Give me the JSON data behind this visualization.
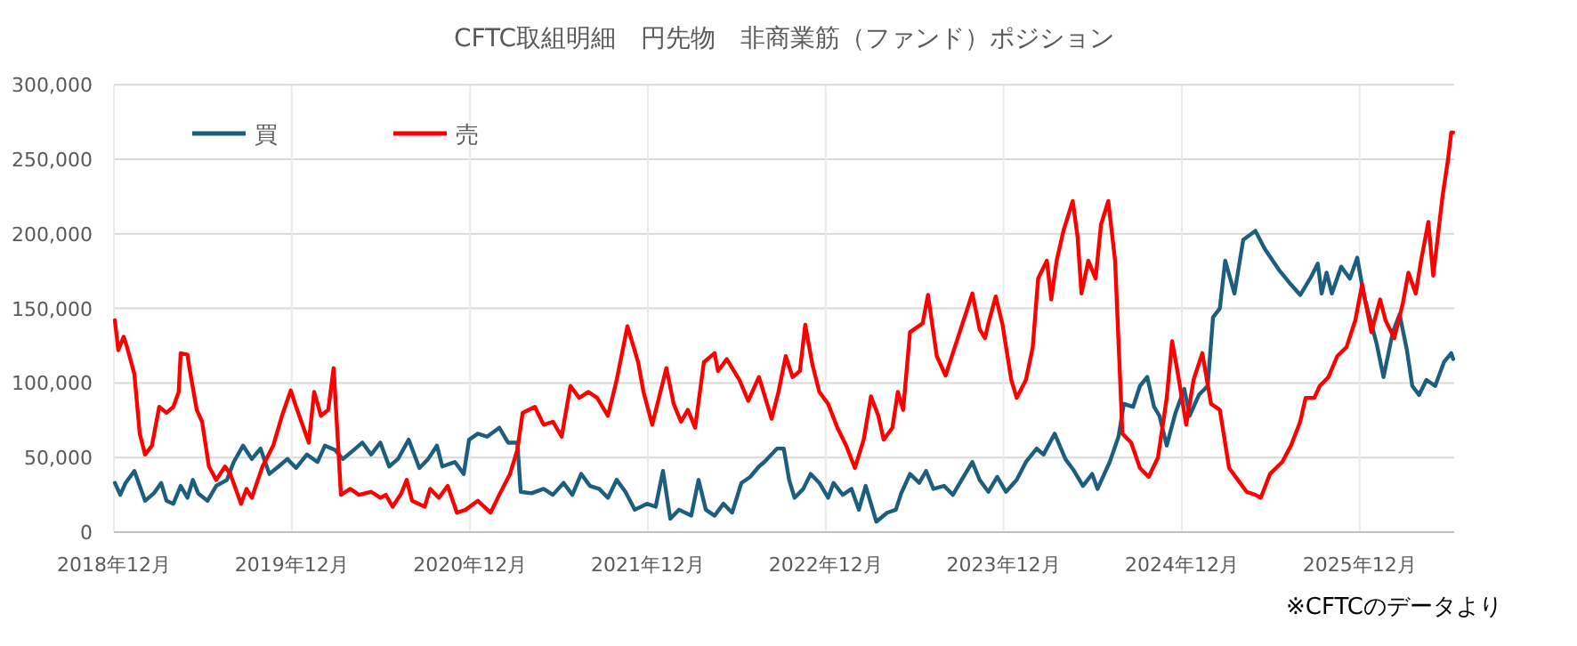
{
  "chart_data": {
    "type": "line",
    "title": "CFTC取組明細　円先物　非商業筋（ファンド）ポジション",
    "xlim": [
      "2018-12-01",
      "2026-06-13"
    ],
    "xticks": [
      {
        "value": "2018-12-01",
        "label": "2018年12月"
      },
      {
        "value": "2019-12-01",
        "label": "2019年12月"
      },
      {
        "value": "2020-12-01",
        "label": "2020年12月"
      },
      {
        "value": "2021-12-01",
        "label": "2021年12月"
      },
      {
        "value": "2022-12-01",
        "label": "2022年12月"
      },
      {
        "value": "2023-12-01",
        "label": "2023年12月"
      },
      {
        "value": "2024-12-01",
        "label": "2024年12月"
      },
      {
        "value": "2025-12-01",
        "label": "2025年12月"
      }
    ],
    "ylim": [
      0,
      300000
    ],
    "yticks": [
      {
        "value": 0,
        "label": "0"
      },
      {
        "value": 50000,
        "label": "50,000"
      },
      {
        "value": 100000,
        "label": "100,000"
      },
      {
        "value": 150000,
        "label": "150,000"
      },
      {
        "value": 200000,
        "label": "200,000"
      },
      {
        "value": 250000,
        "label": "250,000"
      },
      {
        "value": 300000,
        "label": "300,000"
      }
    ],
    "grid": true,
    "legend": "top left",
    "marker": "none",
    "line_style": "solid",
    "annotations": [
      "※CFTCのデータより"
    ],
    "series": [
      {
        "name": "買",
        "color": "#1b5e7e",
        "x": [
          "2018-12-03",
          "2018-12-14",
          "2018-12-25",
          "2019-01-12",
          "2019-01-23",
          "2019-02-03",
          "2019-02-21",
          "2019-03-08",
          "2019-03-19",
          "2019-04-02",
          "2019-04-17",
          "2019-05-01",
          "2019-05-12",
          "2019-05-23",
          "2019-06-11",
          "2019-06-29",
          "2019-07-21",
          "2019-08-04",
          "2019-08-23",
          "2019-09-10",
          "2019-09-28",
          "2019-10-16",
          "2019-11-04",
          "2019-11-22",
          "2019-12-10",
          "2020-01-01",
          "2020-01-23",
          "2020-02-07",
          "2020-02-28",
          "2020-03-15",
          "2020-04-06",
          "2020-04-24",
          "2020-05-12",
          "2020-05-31",
          "2020-06-18",
          "2020-07-06",
          "2020-07-28",
          "2020-08-19",
          "2020-09-06",
          "2020-09-24",
          "2020-10-05",
          "2020-10-31",
          "2020-11-18",
          "2020-11-29",
          "2020-12-17",
          "2021-01-05",
          "2021-01-30",
          "2021-02-17",
          "2021-03-08",
          "2021-03-15",
          "2021-04-06",
          "2021-05-01",
          "2021-05-20",
          "2021-06-11",
          "2021-06-29",
          "2021-07-17",
          "2021-08-04",
          "2021-08-23",
          "2021-09-10",
          "2021-09-28",
          "2021-10-16",
          "2021-11-04",
          "2021-11-29",
          "2021-12-17",
          "2022-01-01",
          "2022-01-16",
          "2022-02-03",
          "2022-02-28",
          "2022-03-15",
          "2022-03-30",
          "2022-04-17",
          "2022-05-05",
          "2022-05-23",
          "2022-06-11",
          "2022-06-29",
          "2022-07-17",
          "2022-07-28",
          "2022-08-23",
          "2022-09-06",
          "2022-09-17",
          "2022-09-28",
          "2022-10-16",
          "2022-10-31",
          "2022-11-18",
          "2022-12-06",
          "2022-12-17",
          "2023-01-05",
          "2023-01-23",
          "2023-02-07",
          "2023-02-21",
          "2023-03-15",
          "2023-04-06",
          "2023-04-24",
          "2023-05-05",
          "2023-05-23",
          "2023-06-11",
          "2023-06-25",
          "2023-07-10",
          "2023-08-01",
          "2023-08-19",
          "2023-09-06",
          "2023-09-28",
          "2023-10-13",
          "2023-10-31",
          "2023-11-18",
          "2023-12-06",
          "2023-12-28",
          "2024-01-16",
          "2024-02-07",
          "2024-02-21",
          "2024-03-15",
          "2024-04-06",
          "2024-04-24",
          "2024-05-12",
          "2024-05-31",
          "2024-06-11",
          "2024-07-06",
          "2024-07-24",
          "2024-08-04",
          "2024-08-23",
          "2024-09-06",
          "2024-09-21",
          "2024-10-05",
          "2024-10-16",
          "2024-10-31",
          "2024-11-18",
          "2024-12-06",
          "2024-12-17",
          "2025-01-05",
          "2025-01-23",
          "2025-02-03",
          "2025-02-17",
          "2025-02-28",
          "2025-03-19",
          "2025-04-06",
          "2025-05-01",
          "2025-05-20",
          "2025-06-18",
          "2025-07-13",
          "2025-08-01",
          "2025-08-23",
          "2025-09-06",
          "2025-09-14",
          "2025-09-24",
          "2025-10-05",
          "2025-10-24",
          "2025-11-11",
          "2025-11-26",
          "2025-12-10",
          "2025-12-25",
          "2026-01-05",
          "2026-01-19",
          "2026-02-07",
          "2026-02-21",
          "2026-03-08",
          "2026-03-19",
          "2026-04-02",
          "2026-04-17",
          "2026-05-05",
          "2026-05-23",
          "2026-06-07",
          "2026-06-11"
        ],
        "values": [
          33000,
          25000,
          33000,
          41000,
          31000,
          21000,
          26000,
          33000,
          21000,
          19000,
          31000,
          23000,
          35000,
          26000,
          21000,
          31000,
          35000,
          47000,
          58000,
          49000,
          56000,
          39000,
          44000,
          49000,
          43000,
          52000,
          47000,
          58000,
          55000,
          49000,
          55000,
          60000,
          52000,
          60000,
          44000,
          49000,
          62000,
          43000,
          49000,
          58000,
          44000,
          47000,
          39000,
          62000,
          66000,
          64000,
          70000,
          60000,
          60000,
          27000,
          26000,
          29000,
          25000,
          33000,
          25000,
          39000,
          31000,
          29000,
          23000,
          35000,
          27000,
          15000,
          19000,
          17000,
          41000,
          9000,
          15000,
          11000,
          35000,
          15000,
          11000,
          19000,
          13000,
          33000,
          37000,
          44000,
          47000,
          56000,
          56000,
          35000,
          23000,
          29000,
          39000,
          33000,
          23000,
          33000,
          25000,
          29000,
          15000,
          31000,
          7000,
          13000,
          15000,
          26000,
          39000,
          33000,
          41000,
          29000,
          31000,
          25000,
          35000,
          47000,
          35000,
          27000,
          37000,
          27000,
          35000,
          47000,
          56000,
          52000,
          66000,
          49000,
          41000,
          31000,
          39000,
          29000,
          47000,
          64000,
          86000,
          84000,
          98000,
          104000,
          84000,
          78000,
          58000,
          80000,
          96000,
          78000,
          92000,
          98000,
          144000,
          150000,
          182000,
          160000,
          196000,
          202000,
          190000,
          176000,
          166000,
          159000,
          171000,
          180000,
          160000,
          174000,
          160000,
          178000,
          170000,
          184000,
          158000,
          140000,
          126000,
          104000,
          134000,
          146000,
          122000,
          98000,
          92000,
          102000,
          98000,
          114000,
          120000,
          116000
        ]
      },
      {
        "name": "売",
        "color": "#ff0000",
        "x": [
          "2018-12-03",
          "2018-12-10",
          "2018-12-21",
          "2018-12-28",
          "2019-01-12",
          "2019-01-23",
          "2019-02-03",
          "2019-02-17",
          "2019-03-04",
          "2019-03-19",
          "2019-04-02",
          "2019-04-13",
          "2019-04-17",
          "2019-05-01",
          "2019-05-05",
          "2019-05-20",
          "2019-05-31",
          "2019-06-14",
          "2019-06-29",
          "2019-07-17",
          "2019-07-28",
          "2019-08-19",
          "2019-08-30",
          "2019-09-10",
          "2019-10-02",
          "2019-10-24",
          "2019-11-11",
          "2019-11-29",
          "2019-12-10",
          "2020-01-05",
          "2020-01-16",
          "2020-01-30",
          "2020-02-14",
          "2020-02-25",
          "2020-03-11",
          "2020-03-30",
          "2020-04-17",
          "2020-05-12",
          "2020-05-31",
          "2020-06-11",
          "2020-06-25",
          "2020-07-13",
          "2020-07-24",
          "2020-08-04",
          "2020-08-30",
          "2020-09-10",
          "2020-09-28",
          "2020-10-16",
          "2020-11-04",
          "2020-11-22",
          "2020-12-17",
          "2021-01-12",
          "2021-01-30",
          "2021-02-21",
          "2021-03-08",
          "2021-03-19",
          "2021-04-13",
          "2021-05-01",
          "2021-05-20",
          "2021-06-07",
          "2021-06-25",
          "2021-07-13",
          "2021-08-01",
          "2021-08-19",
          "2021-09-10",
          "2021-09-28",
          "2021-10-20",
          "2021-11-11",
          "2021-11-22",
          "2021-12-10",
          "2022-01-08",
          "2022-01-23",
          "2022-02-07",
          "2022-02-21",
          "2022-03-08",
          "2022-03-26",
          "2022-04-17",
          "2022-04-24",
          "2022-05-12",
          "2022-06-07",
          "2022-06-25",
          "2022-07-17",
          "2022-08-12",
          "2022-08-26",
          "2022-09-10",
          "2022-09-24",
          "2022-10-09",
          "2022-10-20",
          "2022-11-04",
          "2022-11-18",
          "2022-12-06",
          "2022-12-25",
          "2023-01-12",
          "2023-01-30",
          "2023-02-17",
          "2023-03-04",
          "2023-03-19",
          "2023-03-30",
          "2023-04-17",
          "2023-04-28",
          "2023-05-09",
          "2023-05-23",
          "2023-06-18",
          "2023-06-29",
          "2023-07-17",
          "2023-08-04",
          "2023-08-23",
          "2023-09-10",
          "2023-09-28",
          "2023-10-13",
          "2023-10-24",
          "2023-10-31",
          "2023-11-15",
          "2023-11-29",
          "2023-12-17",
          "2023-12-28",
          "2024-01-16",
          "2024-01-30",
          "2024-02-10",
          "2024-02-28",
          "2024-03-08",
          "2024-03-19",
          "2024-04-02",
          "2024-04-21",
          "2024-05-01",
          "2024-05-09",
          "2024-05-23",
          "2024-06-07",
          "2024-06-18",
          "2024-07-03",
          "2024-07-17",
          "2024-08-01",
          "2024-08-19",
          "2024-09-06",
          "2024-09-24",
          "2024-10-13",
          "2024-10-31",
          "2024-11-11",
          "2024-11-22",
          "2024-12-10",
          "2024-12-25",
          "2025-01-12",
          "2025-01-30",
          "2025-02-17",
          "2025-03-08",
          "2025-03-26",
          "2025-04-13",
          "2025-05-01",
          "2025-05-12",
          "2025-05-31",
          "2025-06-25",
          "2025-07-13",
          "2025-08-01",
          "2025-08-12",
          "2025-08-30",
          "2025-09-10",
          "2025-09-28",
          "2025-10-16",
          "2025-11-04",
          "2025-11-22",
          "2025-12-06",
          "2025-12-25",
          "2026-01-12",
          "2026-01-23",
          "2026-02-10",
          "2026-02-28",
          "2026-03-11",
          "2026-03-26",
          "2026-04-06",
          "2026-04-21",
          "2026-05-01",
          "2026-05-20",
          "2026-05-31",
          "2026-06-07",
          "2026-06-11"
        ],
        "values": [
          142000,
          122000,
          131000,
          124000,
          106000,
          66000,
          52000,
          58000,
          84000,
          80000,
          84000,
          94000,
          120000,
          119000,
          110000,
          82000,
          74000,
          44000,
          35000,
          44000,
          39000,
          19000,
          29000,
          23000,
          44000,
          58000,
          78000,
          95000,
          84000,
          60000,
          94000,
          78000,
          82000,
          110000,
          25000,
          29000,
          25000,
          27000,
          23000,
          25000,
          17000,
          26000,
          35000,
          21000,
          17000,
          29000,
          23000,
          31000,
          13000,
          15000,
          21000,
          13000,
          25000,
          39000,
          55000,
          80000,
          84000,
          72000,
          74000,
          64000,
          98000,
          90000,
          94000,
          90000,
          78000,
          102000,
          138000,
          114000,
          94000,
          72000,
          110000,
          86000,
          74000,
          82000,
          70000,
          114000,
          120000,
          108000,
          116000,
          102000,
          88000,
          104000,
          76000,
          94000,
          118000,
          104000,
          108000,
          139000,
          112000,
          94000,
          86000,
          70000,
          58000,
          43000,
          62000,
          91000,
          78000,
          62000,
          70000,
          94000,
          82000,
          134000,
          140000,
          159000,
          118000,
          105000,
          124000,
          142000,
          160000,
          136000,
          130000,
          140000,
          158000,
          139000,
          102000,
          90000,
          102000,
          124000,
          170000,
          182000,
          156000,
          182000,
          202000,
          222000,
          198000,
          160000,
          182000,
          170000,
          206000,
          222000,
          182000,
          66000,
          60000,
          43000,
          37000,
          50000,
          90000,
          128000,
          108000,
          72000,
          102000,
          120000,
          86000,
          82000,
          43000,
          35000,
          27000,
          25000,
          23000,
          39000,
          47000,
          58000,
          74000,
          90000,
          90000,
          98000,
          104000,
          118000,
          124000,
          142000,
          166000,
          134000,
          156000,
          142000,
          130000,
          154000,
          174000,
          160000,
          182000,
          208000,
          172000,
          225000,
          249000,
          268000,
          268000
        ]
      }
    ]
  }
}
